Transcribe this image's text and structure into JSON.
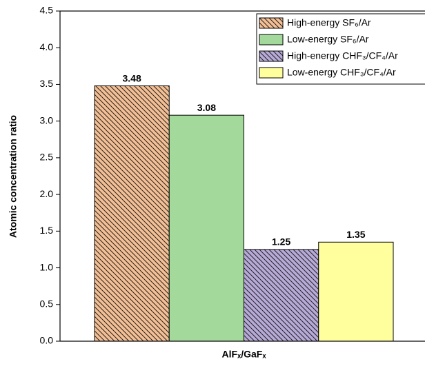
{
  "chart_data": {
    "type": "bar",
    "y_label": "Atomic concentration ratio",
    "categories": [
      "AlFₓ/GaFₓ"
    ],
    "series": [
      {
        "name": "High-energy SF₆/Ar",
        "color": "#f5bf94",
        "hatch": true,
        "values": [
          3.48
        ]
      },
      {
        "name": "Low-energy SF₆/Ar",
        "color": "#a3d99b",
        "hatch": false,
        "values": [
          3.08
        ]
      },
      {
        "name": "High-energy CHF₃/CF₄/Ar",
        "color": "#b7aad8",
        "hatch": true,
        "values": [
          1.25
        ]
      },
      {
        "name": "Low-energy CHF₃/CF₄/Ar",
        "color": "#ffff9e",
        "hatch": false,
        "values": [
          1.35
        ]
      }
    ],
    "ylim": [
      0,
      4.5
    ],
    "yticks": [
      {
        "value": 0,
        "label": "0.0"
      },
      0.5,
      {
        "value": 1,
        "label": "1.0"
      },
      1.5,
      {
        "value": 2,
        "label": "2.0"
      },
      2.5,
      {
        "value": 3,
        "label": "3.0"
      },
      3.5,
      {
        "value": 4,
        "label": "4.0"
      },
      4.5
    ],
    "legend": "upper right"
  }
}
